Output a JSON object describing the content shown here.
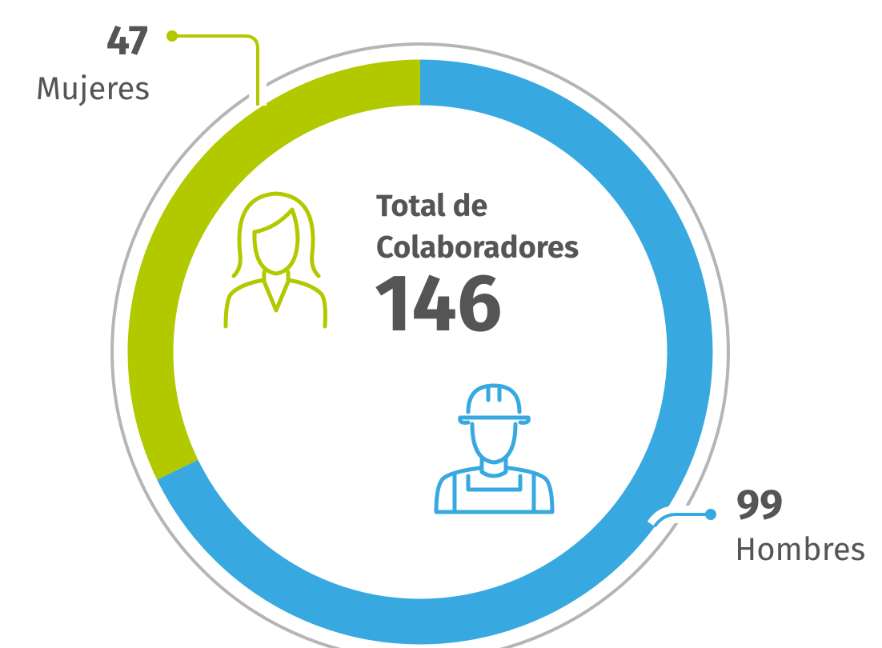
{
  "chart_data": {
    "type": "pie",
    "donut": true,
    "title": "Total de Colaboradores",
    "total": 146,
    "categories": [
      "Hombres",
      "Mujeres"
    ],
    "values": [
      99,
      47
    ],
    "colors": [
      "#38a9e0",
      "#b2c900"
    ]
  }
}
